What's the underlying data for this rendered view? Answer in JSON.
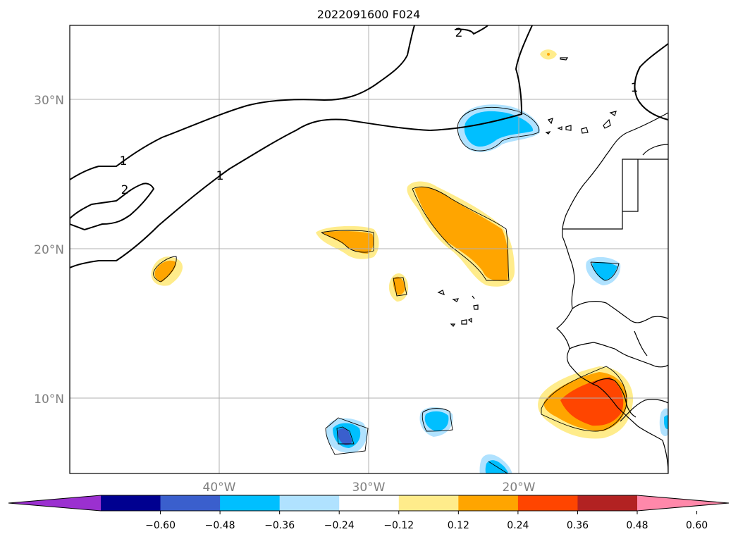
{
  "title": "2022091600 F024",
  "map": {
    "lat_ticks": [
      "30°N",
      "20°N",
      "10°N"
    ],
    "lon_ticks": [
      "40°W",
      "30°W",
      "20°W"
    ],
    "extent": {
      "lon": [
        -50,
        -10
      ],
      "lat": [
        5,
        35
      ]
    },
    "grid": true,
    "contour_labels": [
      "2",
      "1",
      "1",
      "2",
      "1"
    ]
  },
  "colorbar": {
    "ticks": [
      "−0.60",
      "−0.48",
      "−0.36",
      "−0.24",
      "−0.12",
      "0.12",
      "0.24",
      "0.36",
      "0.48",
      "0.60"
    ],
    "colors": [
      "#9b30d0",
      "#000090",
      "#3a5fcd",
      "#00bfff",
      "#b0e2ff",
      "#ffffff",
      "#ffec8b",
      "#ffa500",
      "#ff4500",
      "#b22222",
      "#ff88aa"
    ],
    "extend": "both"
  }
}
